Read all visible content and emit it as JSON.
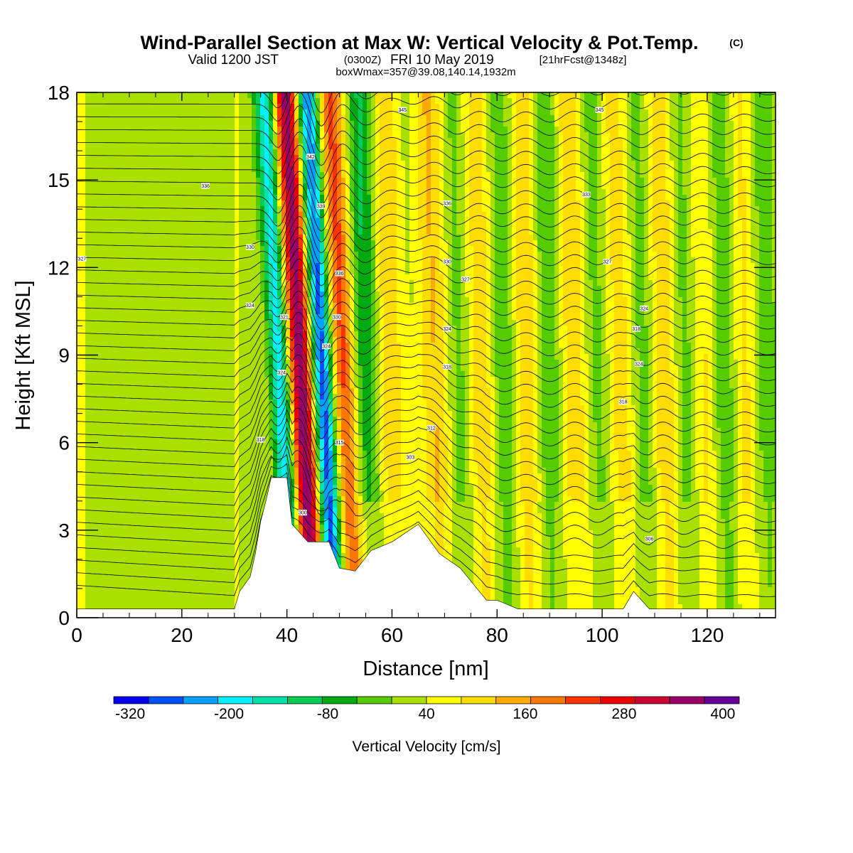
{
  "header": {
    "title": "Wind-Parallel Section at Max W: Vertical Velocity & Pot.Temp.",
    "title_mark": "(C)",
    "subtitle_a": "Valid 1200 JST",
    "subtitle_b": "(0300Z)",
    "subtitle_c": "FRI 10 May 2019",
    "subtitle_d": "[21hrFcst@1348z]",
    "info": "boxWmax=357@39.08,140.14,1932m"
  },
  "chart_data": {
    "type": "heatmap",
    "xlabel": "Distance [nm]",
    "ylabel": "Height [Kft MSL]",
    "xlim": [
      0,
      133
    ],
    "ylim": [
      0,
      18
    ],
    "x_ticks": [
      0,
      20,
      40,
      60,
      80,
      100,
      120
    ],
    "y_ticks": [
      0,
      3,
      6,
      9,
      12,
      15,
      18
    ],
    "colorbar": {
      "label": "Vertical Velocity [cm/s]",
      "min": -340,
      "max": 420,
      "step": 40,
      "tick_labels": [
        "-320",
        "-200",
        "-80",
        "40",
        "160",
        "280",
        "400"
      ],
      "tick_values": [
        -320,
        -200,
        -80,
        40,
        160,
        280,
        400
      ],
      "colors": [
        "#0000ee",
        "#0050ff",
        "#00a0ff",
        "#00f0ff",
        "#00e0a8",
        "#00cc55",
        "#00aa10",
        "#55cc00",
        "#aae000",
        "#ffff00",
        "#ffdd00",
        "#ffaa00",
        "#ff7700",
        "#ff3300",
        "#ee0000",
        "#cc0033",
        "#990066",
        "#660099"
      ]
    },
    "w_features": [
      {
        "x": 38.5,
        "w": -240,
        "width": 1.4
      },
      {
        "x": 42.5,
        "w": 330,
        "width": 1.8
      },
      {
        "x": 46.5,
        "w": -330,
        "width": 1.6
      },
      {
        "x": 50.5,
        "w": 190,
        "width": 2.0
      },
      {
        "x": 55.0,
        "w": -130,
        "width": 2.2
      },
      {
        "x": 59.5,
        "w": 90,
        "width": 2.4
      },
      {
        "x": 64.5,
        "w": -40,
        "width": 2.0
      },
      {
        "x": 68.0,
        "w": 110,
        "width": 2.2
      },
      {
        "x": 72.5,
        "w": -80,
        "width": 2.0
      },
      {
        "x": 76.5,
        "w": 90,
        "width": 2.2
      },
      {
        "x": 81.0,
        "w": -80,
        "width": 2.0
      },
      {
        "x": 85.5,
        "w": 80,
        "width": 2.2
      },
      {
        "x": 90.0,
        "w": -80,
        "width": 2.0
      },
      {
        "x": 95.0,
        "w": 90,
        "width": 2.2
      },
      {
        "x": 99.0,
        "w": -80,
        "width": 2.0
      },
      {
        "x": 103.5,
        "w": 90,
        "width": 2.2
      },
      {
        "x": 107.5,
        "w": -90,
        "width": 2.0
      },
      {
        "x": 111.5,
        "w": 100,
        "width": 2.2
      },
      {
        "x": 115.5,
        "w": -80,
        "width": 2.0
      },
      {
        "x": 119.0,
        "w": 70,
        "width": 2.2
      },
      {
        "x": 123.0,
        "w": -80,
        "width": 2.0
      },
      {
        "x": 127.0,
        "w": 60,
        "width": 2.2
      },
      {
        "x": 131.0,
        "w": -60,
        "width": 2.0
      }
    ],
    "terrain": [
      [
        0,
        0.3
      ],
      [
        30,
        0.3
      ],
      [
        31,
        0.9
      ],
      [
        33,
        1.4
      ],
      [
        34,
        2.2
      ],
      [
        35,
        3.3
      ],
      [
        36,
        4.0
      ],
      [
        37,
        4.8
      ],
      [
        40,
        4.8
      ],
      [
        41,
        3.2
      ],
      [
        42,
        3.0
      ],
      [
        44,
        2.6
      ],
      [
        48,
        2.6
      ],
      [
        50,
        1.7
      ],
      [
        53,
        1.6
      ],
      [
        56,
        2.3
      ],
      [
        60,
        2.6
      ],
      [
        65,
        3.2
      ],
      [
        69,
        2.2
      ],
      [
        73,
        1.7
      ],
      [
        78,
        0.6
      ],
      [
        80,
        0.6
      ],
      [
        84,
        0.3
      ],
      [
        104,
        0.3
      ],
      [
        106,
        0.9
      ],
      [
        109,
        0.3
      ],
      [
        133,
        0.3
      ]
    ],
    "theta_labels": [
      {
        "x": 62,
        "y": 17.4,
        "label": "345"
      },
      {
        "x": 99.5,
        "y": 17.4,
        "label": "345"
      },
      {
        "x": 44.5,
        "y": 15.8,
        "label": "342"
      },
      {
        "x": 24.5,
        "y": 14.8,
        "label": "336"
      },
      {
        "x": 46.5,
        "y": 14.1,
        "label": "339"
      },
      {
        "x": 70.5,
        "y": 14.2,
        "label": "336"
      },
      {
        "x": 97,
        "y": 14.5,
        "label": "333"
      },
      {
        "x": 33,
        "y": 12.7,
        "label": "330"
      },
      {
        "x": 1,
        "y": 12.3,
        "label": "327"
      },
      {
        "x": 70.5,
        "y": 12.2,
        "label": "330"
      },
      {
        "x": 101,
        "y": 12.2,
        "label": "327"
      },
      {
        "x": 50,
        "y": 11.8,
        "label": "336"
      },
      {
        "x": 74,
        "y": 11.6,
        "label": "327"
      },
      {
        "x": 33,
        "y": 10.7,
        "label": "324"
      },
      {
        "x": 108,
        "y": 10.6,
        "label": "324"
      },
      {
        "x": 39.5,
        "y": 10.3,
        "label": "321"
      },
      {
        "x": 49.5,
        "y": 10.3,
        "label": "330"
      },
      {
        "x": 70.5,
        "y": 9.9,
        "label": "324"
      },
      {
        "x": 106.5,
        "y": 9.9,
        "label": "318"
      },
      {
        "x": 47.5,
        "y": 9.3,
        "label": "324"
      },
      {
        "x": 70.5,
        "y": 8.6,
        "label": "318"
      },
      {
        "x": 107,
        "y": 8.7,
        "label": "324"
      },
      {
        "x": 39,
        "y": 8.4,
        "label": "324"
      },
      {
        "x": 104,
        "y": 7.4,
        "label": "318"
      },
      {
        "x": 67.5,
        "y": 6.5,
        "label": "312"
      },
      {
        "x": 35,
        "y": 6.1,
        "label": "318"
      },
      {
        "x": 50,
        "y": 6.0,
        "label": "315"
      },
      {
        "x": 63.5,
        "y": 5.5,
        "label": "303"
      },
      {
        "x": 43,
        "y": 3.6,
        "label": "300"
      },
      {
        "x": 109,
        "y": 2.7,
        "label": "306"
      }
    ]
  }
}
